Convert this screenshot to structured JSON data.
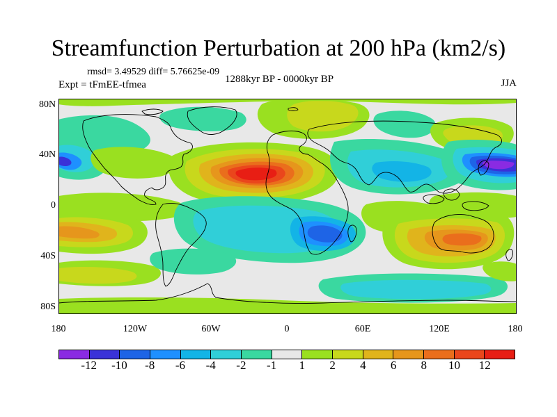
{
  "figure": {
    "title": "Streamfunction Perturbation at 200 hPa (km2/s)",
    "stats_line": "rmsd= 3.49529 diff= 5.76625e-09",
    "experiment": "Expt = tFmEE-tfmea",
    "time_range": "1288kyr BP - 0000kyr BP",
    "season": "JJA"
  },
  "axes": {
    "latitude_labels": [
      "80N",
      "40N",
      "0",
      "40S",
      "80S"
    ],
    "longitude_labels": [
      "180",
      "120W",
      "60W",
      "0",
      "60E",
      "120E",
      "180"
    ]
  },
  "colorbar": {
    "labels": [
      "-12",
      "-10",
      "-8",
      "-6",
      "-4",
      "-2",
      "-1",
      "1",
      "2",
      "4",
      "6",
      "8",
      "10",
      "12"
    ],
    "colors": [
      "#8a2be2",
      "#3a32d8",
      "#1e64e6",
      "#1e90ff",
      "#13b4e6",
      "#30cfd8",
      "#3ad8a0",
      "#e8e8e8",
      "#9ae020",
      "#c8d81c",
      "#e0b41c",
      "#e6961c",
      "#ea6e1c",
      "#ea461c",
      "#e81e14"
    ]
  },
  "field": {
    "units": "km2/s",
    "features": [
      {
        "name": "sahara-high",
        "lon": -20,
        "lat": 30,
        "value": 12
      },
      {
        "name": "north-pacific-low",
        "lon": 165,
        "lat": 30,
        "value": -12
      },
      {
        "name": "east-pacific-low",
        "lon": -178,
        "lat": 30,
        "value": -8
      },
      {
        "name": "india-low",
        "lon": 80,
        "lat": 25,
        "value": -3
      },
      {
        "name": "europe-high",
        "lon": 20,
        "lat": 68,
        "value": 5
      },
      {
        "name": "siberia-low",
        "lon": 90,
        "lat": 65,
        "value": -2
      },
      {
        "name": "siberia-high",
        "lon": 130,
        "lat": 55,
        "value": 4
      },
      {
        "name": "south-africa-low",
        "lon": 35,
        "lat": -25,
        "value": -8
      },
      {
        "name": "south-atlantic-low",
        "lon": -30,
        "lat": -20,
        "value": -4
      },
      {
        "name": "australia-high",
        "lon": 130,
        "lat": -25,
        "value": 8
      },
      {
        "name": "south-pacific-high",
        "lon": -170,
        "lat": -25,
        "value": 6
      },
      {
        "name": "indian-ocean-high",
        "lon": 80,
        "lat": -20,
        "value": 2
      },
      {
        "name": "southern-ocean-low",
        "lon": 60,
        "lat": -65,
        "value": -3
      },
      {
        "name": "southern-pacific-high",
        "lon": -130,
        "lat": -65,
        "value": 2
      }
    ]
  }
}
